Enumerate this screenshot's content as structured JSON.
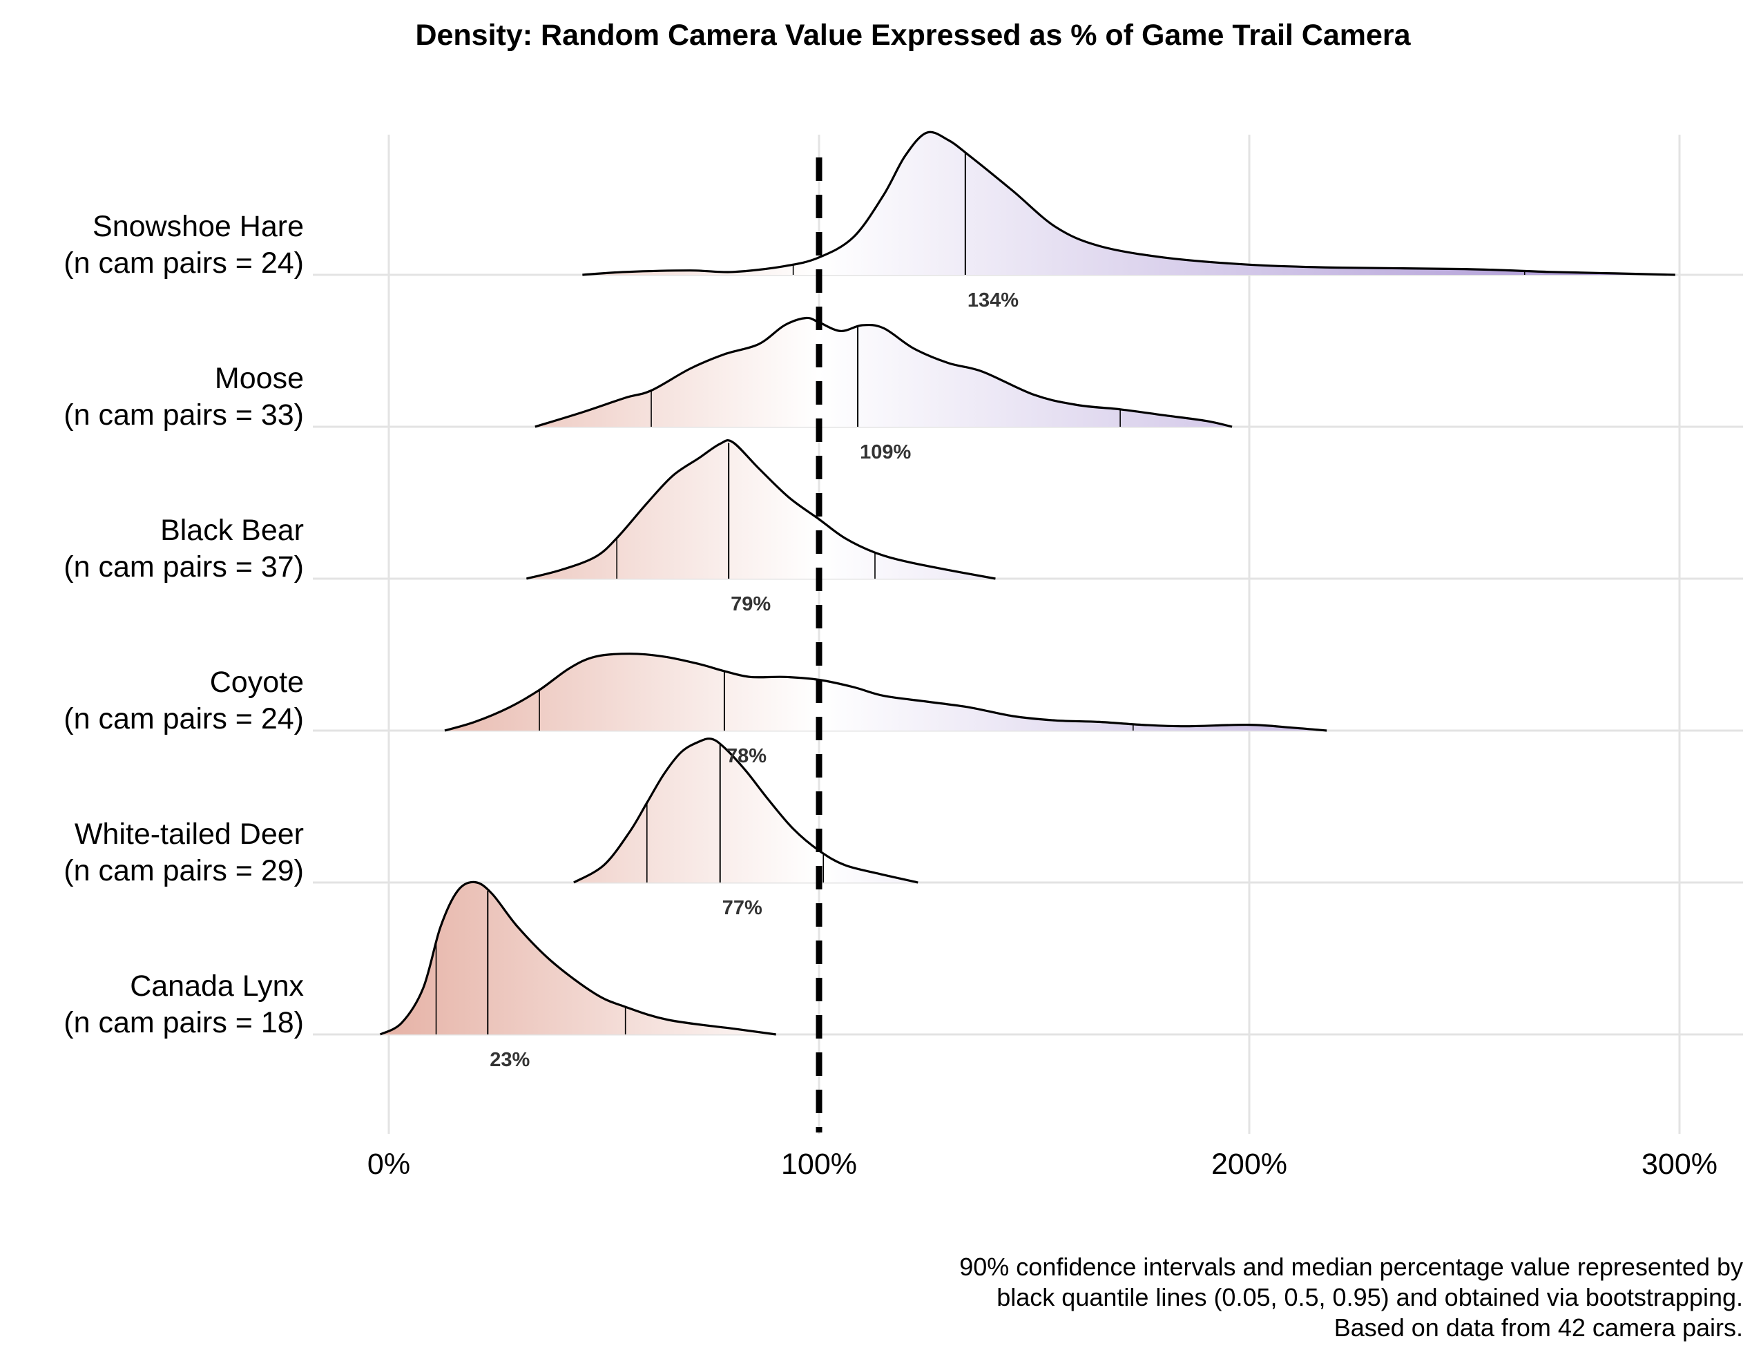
{
  "chart_data": {
    "type": "ridgeline-density",
    "title": "Density: Random Camera Value Expressed as % of Game Trail Camera",
    "x_ticks": [
      0,
      100,
      200,
      300
    ],
    "x_tick_labels": [
      "0%",
      "100%",
      "200%",
      "300%"
    ],
    "xlim": [
      -8,
      315
    ],
    "reference_line": {
      "x": 100,
      "style": "dashed"
    },
    "color_scale": {
      "low": "#e6b3a7",
      "mid": "#ffffff",
      "high": "#a58fd1",
      "low_value": 0,
      "mid_value": 100,
      "high_value": 300
    },
    "series": [
      {
        "name": "Snowshoe Hare",
        "label_line1": "Snowshoe Hare",
        "label_line2": "(n cam pairs = 24)",
        "median_label": "134%",
        "quantiles": {
          "q05": 94,
          "median": 134,
          "q95": 264
        },
        "density": [
          [
            45,
            0
          ],
          [
            55,
            0.02
          ],
          [
            70,
            0.03
          ],
          [
            80,
            0.02
          ],
          [
            92,
            0.06
          ],
          [
            100,
            0.12
          ],
          [
            108,
            0.26
          ],
          [
            115,
            0.55
          ],
          [
            120,
            0.82
          ],
          [
            125,
            0.98
          ],
          [
            130,
            0.93
          ],
          [
            135,
            0.82
          ],
          [
            145,
            0.58
          ],
          [
            155,
            0.33
          ],
          [
            165,
            0.2
          ],
          [
            180,
            0.12
          ],
          [
            200,
            0.07
          ],
          [
            220,
            0.05
          ],
          [
            250,
            0.04
          ],
          [
            270,
            0.02
          ],
          [
            285,
            0.01
          ],
          [
            299,
            0
          ]
        ]
      },
      {
        "name": "Moose",
        "label_line1": "Moose",
        "label_line2": "(n cam pairs = 33)",
        "median_label": "109%",
        "quantiles": {
          "q05": 61,
          "median": 109,
          "q95": 170
        },
        "density": [
          [
            34,
            0
          ],
          [
            45,
            0.1
          ],
          [
            55,
            0.2
          ],
          [
            61,
            0.25
          ],
          [
            70,
            0.4
          ],
          [
            78,
            0.5
          ],
          [
            86,
            0.57
          ],
          [
            92,
            0.7
          ],
          [
            97,
            0.75
          ],
          [
            100,
            0.72
          ],
          [
            105,
            0.66
          ],
          [
            110,
            0.7
          ],
          [
            115,
            0.68
          ],
          [
            122,
            0.54
          ],
          [
            130,
            0.44
          ],
          [
            138,
            0.38
          ],
          [
            150,
            0.22
          ],
          [
            160,
            0.15
          ],
          [
            170,
            0.12
          ],
          [
            180,
            0.08
          ],
          [
            190,
            0.04
          ],
          [
            196,
            0
          ]
        ]
      },
      {
        "name": "Black Bear",
        "label_line1": "Black Bear",
        "label_line2": "(n cam pairs = 37)",
        "median_label": "79%",
        "quantiles": {
          "q05": 53,
          "median": 79,
          "q95": 113
        },
        "density": [
          [
            32,
            0
          ],
          [
            40,
            0.06
          ],
          [
            48,
            0.15
          ],
          [
            53,
            0.28
          ],
          [
            60,
            0.52
          ],
          [
            66,
            0.71
          ],
          [
            72,
            0.83
          ],
          [
            77,
            0.93
          ],
          [
            80,
            0.94
          ],
          [
            86,
            0.76
          ],
          [
            93,
            0.56
          ],
          [
            100,
            0.41
          ],
          [
            106,
            0.28
          ],
          [
            113,
            0.18
          ],
          [
            120,
            0.12
          ],
          [
            130,
            0.06
          ],
          [
            141,
            0
          ]
        ]
      },
      {
        "name": "Coyote",
        "label_line1": "Coyote",
        "label_line2": "(n cam pairs = 24)",
        "median_label": "78%",
        "quantiles": {
          "q05": 35,
          "median": 78,
          "q95": 173
        },
        "density": [
          [
            13,
            0
          ],
          [
            20,
            0.06
          ],
          [
            28,
            0.16
          ],
          [
            35,
            0.28
          ],
          [
            42,
            0.43
          ],
          [
            48,
            0.51
          ],
          [
            56,
            0.53
          ],
          [
            64,
            0.51
          ],
          [
            72,
            0.46
          ],
          [
            78,
            0.41
          ],
          [
            84,
            0.37
          ],
          [
            92,
            0.37
          ],
          [
            100,
            0.35
          ],
          [
            108,
            0.3
          ],
          [
            115,
            0.24
          ],
          [
            125,
            0.2
          ],
          [
            135,
            0.16
          ],
          [
            145,
            0.1
          ],
          [
            155,
            0.07
          ],
          [
            165,
            0.06
          ],
          [
            175,
            0.04
          ],
          [
            185,
            0.03
          ],
          [
            200,
            0.04
          ],
          [
            210,
            0.02
          ],
          [
            218,
            0
          ]
        ]
      },
      {
        "name": "White-tailed Deer",
        "label_line1": "White-tailed Deer",
        "label_line2": "(n cam pairs = 29)",
        "median_label": "77%",
        "quantiles": {
          "q05": 60,
          "median": 77,
          "q95": 101
        },
        "density": [
          [
            43,
            0
          ],
          [
            50,
            0.12
          ],
          [
            56,
            0.35
          ],
          [
            60,
            0.55
          ],
          [
            64,
            0.75
          ],
          [
            68,
            0.9
          ],
          [
            72,
            0.97
          ],
          [
            75,
            0.99
          ],
          [
            78,
            0.93
          ],
          [
            83,
            0.77
          ],
          [
            88,
            0.58
          ],
          [
            94,
            0.37
          ],
          [
            100,
            0.22
          ],
          [
            106,
            0.12
          ],
          [
            114,
            0.06
          ],
          [
            123,
            0
          ]
        ]
      },
      {
        "name": "Canada Lynx",
        "label_line1": "Canada Lynx",
        "label_line2": "(n cam pairs = 18)",
        "median_label": "23%",
        "quantiles": {
          "q05": 11,
          "median": 23,
          "q95": 55
        },
        "density": [
          [
            -2,
            0
          ],
          [
            3,
            0.08
          ],
          [
            8,
            0.32
          ],
          [
            12,
            0.74
          ],
          [
            16,
            0.99
          ],
          [
            20,
            1.05
          ],
          [
            24,
            0.97
          ],
          [
            30,
            0.74
          ],
          [
            38,
            0.5
          ],
          [
            48,
            0.28
          ],
          [
            55,
            0.19
          ],
          [
            65,
            0.1
          ],
          [
            80,
            0.04
          ],
          [
            90,
            0
          ]
        ]
      }
    ],
    "caption": [
      "90% confidence intervals and median percentage value represented by",
      "black quantile lines (0.05, 0.5, 0.95) and obtained via bootstrapping.",
      "Based on data from 42 camera pairs."
    ]
  }
}
